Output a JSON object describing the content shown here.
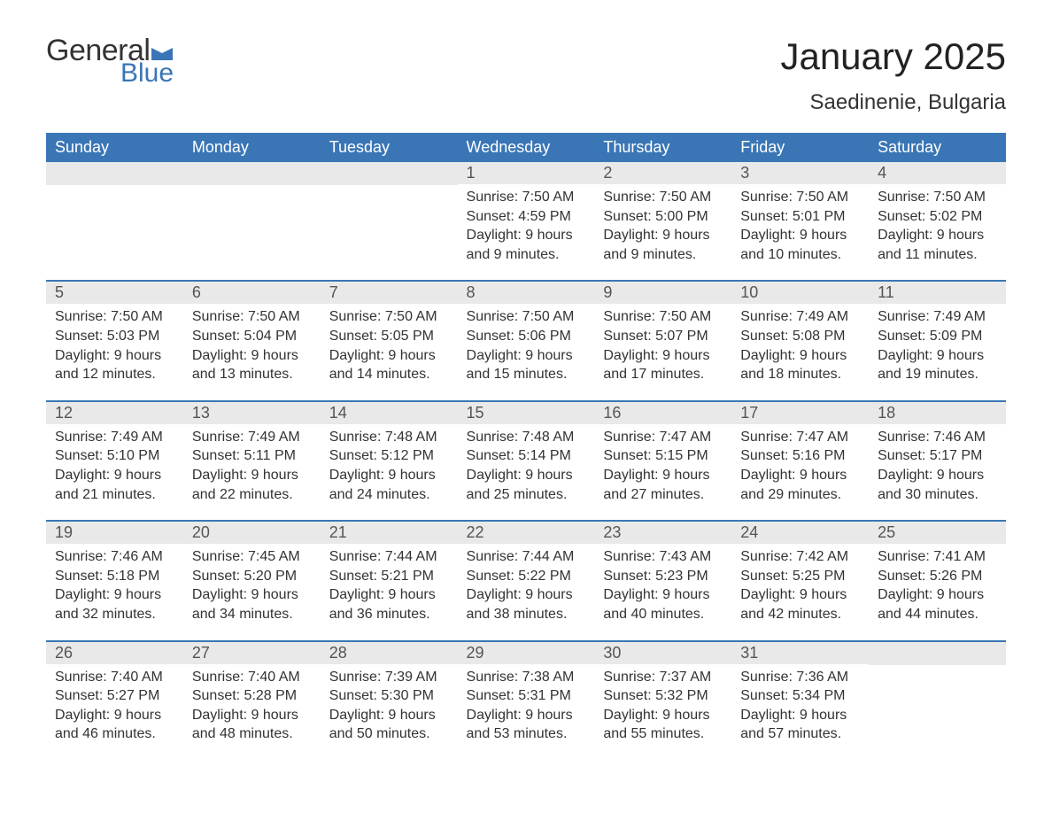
{
  "logo": {
    "general": "General",
    "blue": "Blue"
  },
  "title": "January 2025",
  "location": "Saedinenie, Bulgaria",
  "colors": {
    "header_bg": "#3a76b6",
    "header_text": "#ffffff",
    "daynum_bg": "#e9e9e9",
    "row_divider": "#3a76b6",
    "logo_blue": "#3a76b6",
    "body_text": "#333333",
    "background": "#ffffff"
  },
  "typography": {
    "font_family": "Arial",
    "title_fontsize": 42,
    "location_fontsize": 24,
    "weekday_fontsize": 18,
    "daynum_fontsize": 18,
    "data_fontsize": 16
  },
  "weekdays": [
    "Sunday",
    "Monday",
    "Tuesday",
    "Wednesday",
    "Thursday",
    "Friday",
    "Saturday"
  ],
  "weeks": [
    [
      null,
      null,
      null,
      {
        "n": "1",
        "sunrise": "Sunrise: 7:50 AM",
        "sunset": "Sunset: 4:59 PM",
        "d1": "Daylight: 9 hours",
        "d2": "and 9 minutes."
      },
      {
        "n": "2",
        "sunrise": "Sunrise: 7:50 AM",
        "sunset": "Sunset: 5:00 PM",
        "d1": "Daylight: 9 hours",
        "d2": "and 9 minutes."
      },
      {
        "n": "3",
        "sunrise": "Sunrise: 7:50 AM",
        "sunset": "Sunset: 5:01 PM",
        "d1": "Daylight: 9 hours",
        "d2": "and 10 minutes."
      },
      {
        "n": "4",
        "sunrise": "Sunrise: 7:50 AM",
        "sunset": "Sunset: 5:02 PM",
        "d1": "Daylight: 9 hours",
        "d2": "and 11 minutes."
      }
    ],
    [
      {
        "n": "5",
        "sunrise": "Sunrise: 7:50 AM",
        "sunset": "Sunset: 5:03 PM",
        "d1": "Daylight: 9 hours",
        "d2": "and 12 minutes."
      },
      {
        "n": "6",
        "sunrise": "Sunrise: 7:50 AM",
        "sunset": "Sunset: 5:04 PM",
        "d1": "Daylight: 9 hours",
        "d2": "and 13 minutes."
      },
      {
        "n": "7",
        "sunrise": "Sunrise: 7:50 AM",
        "sunset": "Sunset: 5:05 PM",
        "d1": "Daylight: 9 hours",
        "d2": "and 14 minutes."
      },
      {
        "n": "8",
        "sunrise": "Sunrise: 7:50 AM",
        "sunset": "Sunset: 5:06 PM",
        "d1": "Daylight: 9 hours",
        "d2": "and 15 minutes."
      },
      {
        "n": "9",
        "sunrise": "Sunrise: 7:50 AM",
        "sunset": "Sunset: 5:07 PM",
        "d1": "Daylight: 9 hours",
        "d2": "and 17 minutes."
      },
      {
        "n": "10",
        "sunrise": "Sunrise: 7:49 AM",
        "sunset": "Sunset: 5:08 PM",
        "d1": "Daylight: 9 hours",
        "d2": "and 18 minutes."
      },
      {
        "n": "11",
        "sunrise": "Sunrise: 7:49 AM",
        "sunset": "Sunset: 5:09 PM",
        "d1": "Daylight: 9 hours",
        "d2": "and 19 minutes."
      }
    ],
    [
      {
        "n": "12",
        "sunrise": "Sunrise: 7:49 AM",
        "sunset": "Sunset: 5:10 PM",
        "d1": "Daylight: 9 hours",
        "d2": "and 21 minutes."
      },
      {
        "n": "13",
        "sunrise": "Sunrise: 7:49 AM",
        "sunset": "Sunset: 5:11 PM",
        "d1": "Daylight: 9 hours",
        "d2": "and 22 minutes."
      },
      {
        "n": "14",
        "sunrise": "Sunrise: 7:48 AM",
        "sunset": "Sunset: 5:12 PM",
        "d1": "Daylight: 9 hours",
        "d2": "and 24 minutes."
      },
      {
        "n": "15",
        "sunrise": "Sunrise: 7:48 AM",
        "sunset": "Sunset: 5:14 PM",
        "d1": "Daylight: 9 hours",
        "d2": "and 25 minutes."
      },
      {
        "n": "16",
        "sunrise": "Sunrise: 7:47 AM",
        "sunset": "Sunset: 5:15 PM",
        "d1": "Daylight: 9 hours",
        "d2": "and 27 minutes."
      },
      {
        "n": "17",
        "sunrise": "Sunrise: 7:47 AM",
        "sunset": "Sunset: 5:16 PM",
        "d1": "Daylight: 9 hours",
        "d2": "and 29 minutes."
      },
      {
        "n": "18",
        "sunrise": "Sunrise: 7:46 AM",
        "sunset": "Sunset: 5:17 PM",
        "d1": "Daylight: 9 hours",
        "d2": "and 30 minutes."
      }
    ],
    [
      {
        "n": "19",
        "sunrise": "Sunrise: 7:46 AM",
        "sunset": "Sunset: 5:18 PM",
        "d1": "Daylight: 9 hours",
        "d2": "and 32 minutes."
      },
      {
        "n": "20",
        "sunrise": "Sunrise: 7:45 AM",
        "sunset": "Sunset: 5:20 PM",
        "d1": "Daylight: 9 hours",
        "d2": "and 34 minutes."
      },
      {
        "n": "21",
        "sunrise": "Sunrise: 7:44 AM",
        "sunset": "Sunset: 5:21 PM",
        "d1": "Daylight: 9 hours",
        "d2": "and 36 minutes."
      },
      {
        "n": "22",
        "sunrise": "Sunrise: 7:44 AM",
        "sunset": "Sunset: 5:22 PM",
        "d1": "Daylight: 9 hours",
        "d2": "and 38 minutes."
      },
      {
        "n": "23",
        "sunrise": "Sunrise: 7:43 AM",
        "sunset": "Sunset: 5:23 PM",
        "d1": "Daylight: 9 hours",
        "d2": "and 40 minutes."
      },
      {
        "n": "24",
        "sunrise": "Sunrise: 7:42 AM",
        "sunset": "Sunset: 5:25 PM",
        "d1": "Daylight: 9 hours",
        "d2": "and 42 minutes."
      },
      {
        "n": "25",
        "sunrise": "Sunrise: 7:41 AM",
        "sunset": "Sunset: 5:26 PM",
        "d1": "Daylight: 9 hours",
        "d2": "and 44 minutes."
      }
    ],
    [
      {
        "n": "26",
        "sunrise": "Sunrise: 7:40 AM",
        "sunset": "Sunset: 5:27 PM",
        "d1": "Daylight: 9 hours",
        "d2": "and 46 minutes."
      },
      {
        "n": "27",
        "sunrise": "Sunrise: 7:40 AM",
        "sunset": "Sunset: 5:28 PM",
        "d1": "Daylight: 9 hours",
        "d2": "and 48 minutes."
      },
      {
        "n": "28",
        "sunrise": "Sunrise: 7:39 AM",
        "sunset": "Sunset: 5:30 PM",
        "d1": "Daylight: 9 hours",
        "d2": "and 50 minutes."
      },
      {
        "n": "29",
        "sunrise": "Sunrise: 7:38 AM",
        "sunset": "Sunset: 5:31 PM",
        "d1": "Daylight: 9 hours",
        "d2": "and 53 minutes."
      },
      {
        "n": "30",
        "sunrise": "Sunrise: 7:37 AM",
        "sunset": "Sunset: 5:32 PM",
        "d1": "Daylight: 9 hours",
        "d2": "and 55 minutes."
      },
      {
        "n": "31",
        "sunrise": "Sunrise: 7:36 AM",
        "sunset": "Sunset: 5:34 PM",
        "d1": "Daylight: 9 hours",
        "d2": "and 57 minutes."
      },
      null
    ]
  ]
}
